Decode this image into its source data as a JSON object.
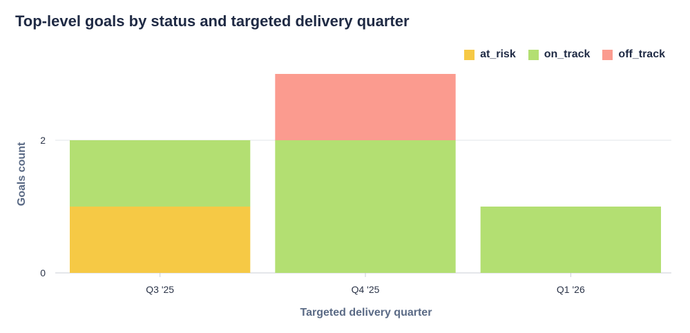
{
  "chart_data": {
    "type": "bar",
    "stacked": true,
    "title": "Top-level goals by status and targeted delivery quarter",
    "xlabel": "Targeted delivery quarter",
    "ylabel": "Goals count",
    "categories": [
      "Q3 '25",
      "Q4 '25",
      "Q1 '26"
    ],
    "series": [
      {
        "name": "at_risk",
        "color": "#f6c945",
        "values": [
          1,
          0,
          0
        ]
      },
      {
        "name": "on_track",
        "color": "#b3df72",
        "values": [
          1,
          2,
          1
        ]
      },
      {
        "name": "off_track",
        "color": "#fb9b8f",
        "values": [
          0,
          1,
          0
        ]
      }
    ],
    "yticks": [
      0,
      2
    ],
    "ylim": [
      0,
      3
    ],
    "grid": true,
    "legend_position": "top-right"
  }
}
